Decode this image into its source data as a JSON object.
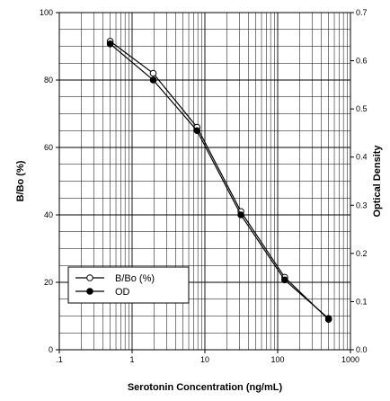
{
  "chart_data": {
    "type": "line",
    "xlabel": "Serotonin Concentration (ng/mL)",
    "ylabel": "B/Bo (%)",
    "y2label": "Optical Density",
    "x_scale": "log",
    "xlim": [
      0.1,
      1000
    ],
    "ylim": [
      0,
      100
    ],
    "y2lim": [
      0,
      0.7
    ],
    "grid": true,
    "legend_position": "bottom-left",
    "x_tick_labels": [
      ".1",
      "1",
      "10",
      "100",
      "1000"
    ],
    "y_tick_labels": [
      "0",
      "20",
      "40",
      "60",
      "80",
      "100"
    ],
    "y2_tick_labels": [
      "0.0",
      "0.1",
      "0.2",
      "0.3",
      "0.4",
      "0.5",
      "0.6",
      "0.7"
    ],
    "series": [
      {
        "name": "B/Bo (%)",
        "marker": "open-circle",
        "axis": "left",
        "x": [
          0.5,
          1.95,
          7.8,
          31.25,
          125,
          500
        ],
        "values": [
          91.5,
          82.0,
          66.0,
          41.0,
          21.5,
          9.0
        ]
      },
      {
        "name": "OD",
        "marker": "filled-circle",
        "axis": "right",
        "x": [
          0.5,
          1.95,
          7.8,
          31.25,
          125,
          500
        ],
        "values": [
          0.635,
          0.56,
          0.455,
          0.28,
          0.145,
          0.065
        ]
      }
    ]
  }
}
